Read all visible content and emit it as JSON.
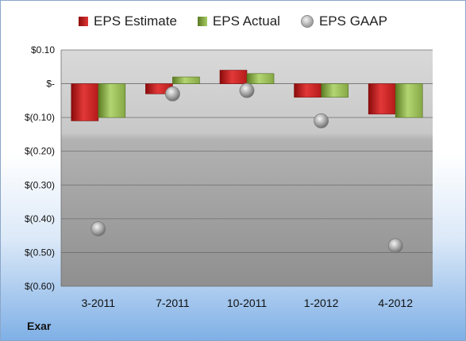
{
  "company": "Exar",
  "legend": [
    {
      "label": "EPS Estimate",
      "icon": "red-bar-swatch"
    },
    {
      "label": "EPS Actual",
      "icon": "green-bar-swatch"
    },
    {
      "label": "EPS GAAP",
      "icon": "gray-sphere-marker"
    }
  ],
  "colors": {
    "estimate": "#d42424",
    "actual": "#8fb24a",
    "gaap": "#a0a0a0"
  },
  "chart_data": {
    "type": "bar",
    "categories": [
      "3-2011",
      "7-2011",
      "10-2011",
      "1-2012",
      "4-2012"
    ],
    "series": [
      {
        "name": "EPS Estimate",
        "type": "bar",
        "values": [
          -0.11,
          -0.03,
          0.04,
          -0.04,
          -0.09
        ]
      },
      {
        "name": "EPS Actual",
        "type": "bar",
        "values": [
          -0.1,
          0.02,
          0.03,
          -0.04,
          -0.1
        ]
      },
      {
        "name": "EPS GAAP",
        "type": "scatter",
        "values": [
          -0.43,
          -0.03,
          -0.02,
          -0.11,
          -0.48
        ]
      }
    ],
    "ylim": [
      -0.6,
      0.1
    ],
    "yticks": [
      0.1,
      0,
      -0.1,
      -0.2,
      -0.3,
      -0.4,
      -0.5,
      -0.6
    ],
    "ytick_labels": [
      "$0.10",
      "$-",
      "$(0.10)",
      "$(0.20)",
      "$(0.30)",
      "$(0.40)",
      "$(0.50)",
      "$(0.60)"
    ],
    "grid": true,
    "legend_position": "top"
  }
}
